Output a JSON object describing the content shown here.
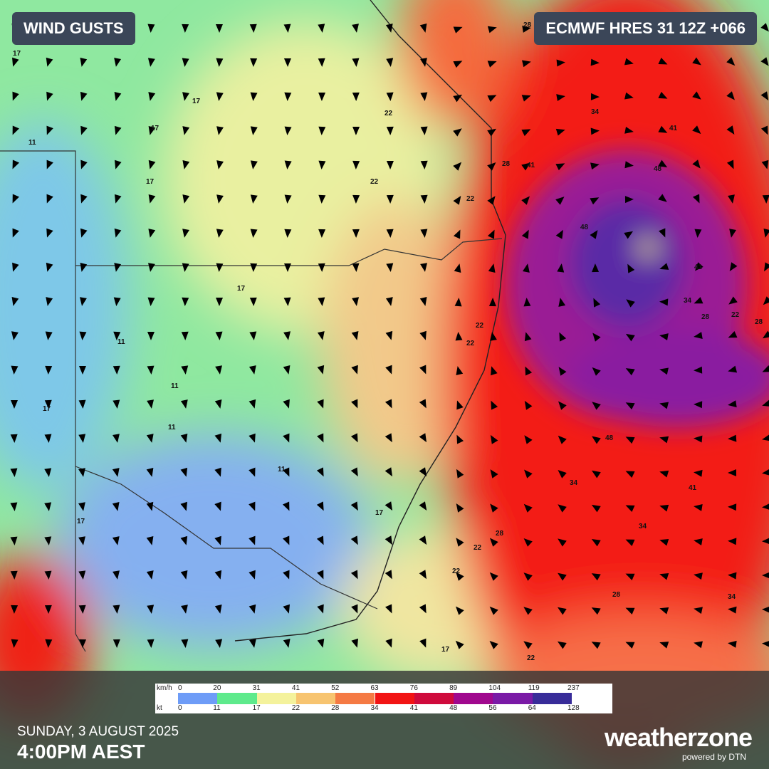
{
  "header": {
    "title": "WIND GUSTS",
    "model": "ECMWF HRES 31 12Z +066"
  },
  "legend": {
    "units": [
      "km/h",
      "kt"
    ],
    "kmh": [
      0,
      20,
      31,
      41,
      52,
      63,
      76,
      89,
      104,
      119,
      237
    ],
    "kt": [
      0,
      11,
      17,
      22,
      28,
      34,
      41,
      48,
      56,
      64,
      128
    ],
    "colors": [
      "#6e9cf7",
      "#5eea8c",
      "#f4f29c",
      "#f7c470",
      "#f57a44",
      "#f21414",
      "#cf0a3c",
      "#a0088e",
      "#7a1aa6",
      "#382c99"
    ]
  },
  "contour_labels": [
    17,
    17,
    17,
    17,
    22,
    22,
    22,
    22,
    17,
    11,
    11,
    11,
    17,
    11,
    11,
    17,
    22,
    22,
    28,
    28,
    34,
    41,
    41,
    48,
    48,
    41,
    34,
    28,
    22,
    28,
    34,
    34,
    28,
    22,
    17,
    17,
    22,
    28,
    34,
    48,
    41
  ],
  "footer": {
    "date": "SUNDAY, 3 AUGUST 2025",
    "time": "4:00PM AEST",
    "brand": "weatherzone",
    "powered": "powered by DTN"
  }
}
